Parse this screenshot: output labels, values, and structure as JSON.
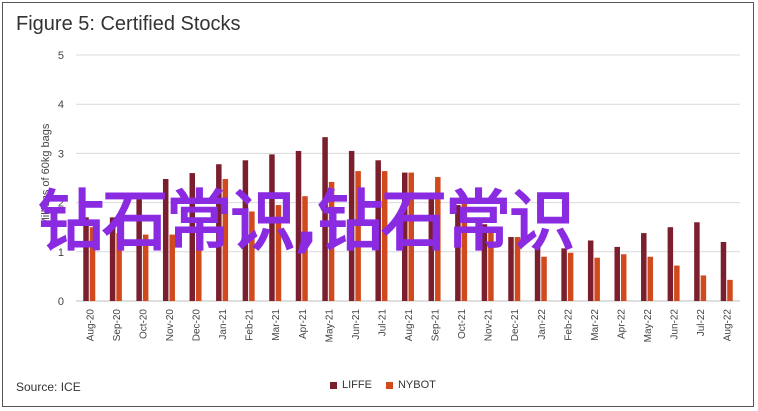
{
  "chart_data": {
    "type": "bar",
    "title": "Figure 5: Certified Stocks",
    "ylabel": "Millions of 60kg bags",
    "ylim": [
      0,
      5
    ],
    "yticks": [
      0,
      1,
      2,
      3,
      4,
      5
    ],
    "grid": true,
    "legend_position": "bottom",
    "categories": [
      "Aug-20",
      "Sep-20",
      "Oct-20",
      "Nov-20",
      "Dec-20",
      "Jan-21",
      "Feb-21",
      "Mar-21",
      "Apr-21",
      "May-21",
      "Jun-21",
      "Jul-21",
      "Aug-21",
      "Sep-21",
      "Oct-21",
      "Nov-21",
      "Dec-21",
      "Jan-22",
      "Feb-22",
      "Mar-22",
      "Apr-22",
      "May-22",
      "Jun-22",
      "Jul-22",
      "Aug-22"
    ],
    "series": [
      {
        "name": "LIFFE",
        "color": "#7b1f2e",
        "values": [
          1.7,
          1.7,
          2.07,
          2.48,
          2.6,
          2.78,
          2.86,
          2.98,
          3.05,
          3.33,
          3.05,
          2.86,
          2.61,
          2.17,
          1.95,
          1.56,
          1.3,
          1.12,
          1.07,
          1.23,
          1.1,
          1.38,
          1.5,
          1.6,
          1.2
        ]
      },
      {
        "name": "NYBOT",
        "color": "#d04a1e",
        "values": [
          1.5,
          1.38,
          1.35,
          1.35,
          1.5,
          2.48,
          1.82,
          1.95,
          2.13,
          2.42,
          2.64,
          2.64,
          2.61,
          2.52,
          2.0,
          1.4,
          1.3,
          0.9,
          0.98,
          0.88,
          0.95,
          0.9,
          0.72,
          0.52,
          0.43
        ]
      }
    ]
  },
  "watermark_text": "钻石常识,钻石常识",
  "source": "Source: ICE"
}
